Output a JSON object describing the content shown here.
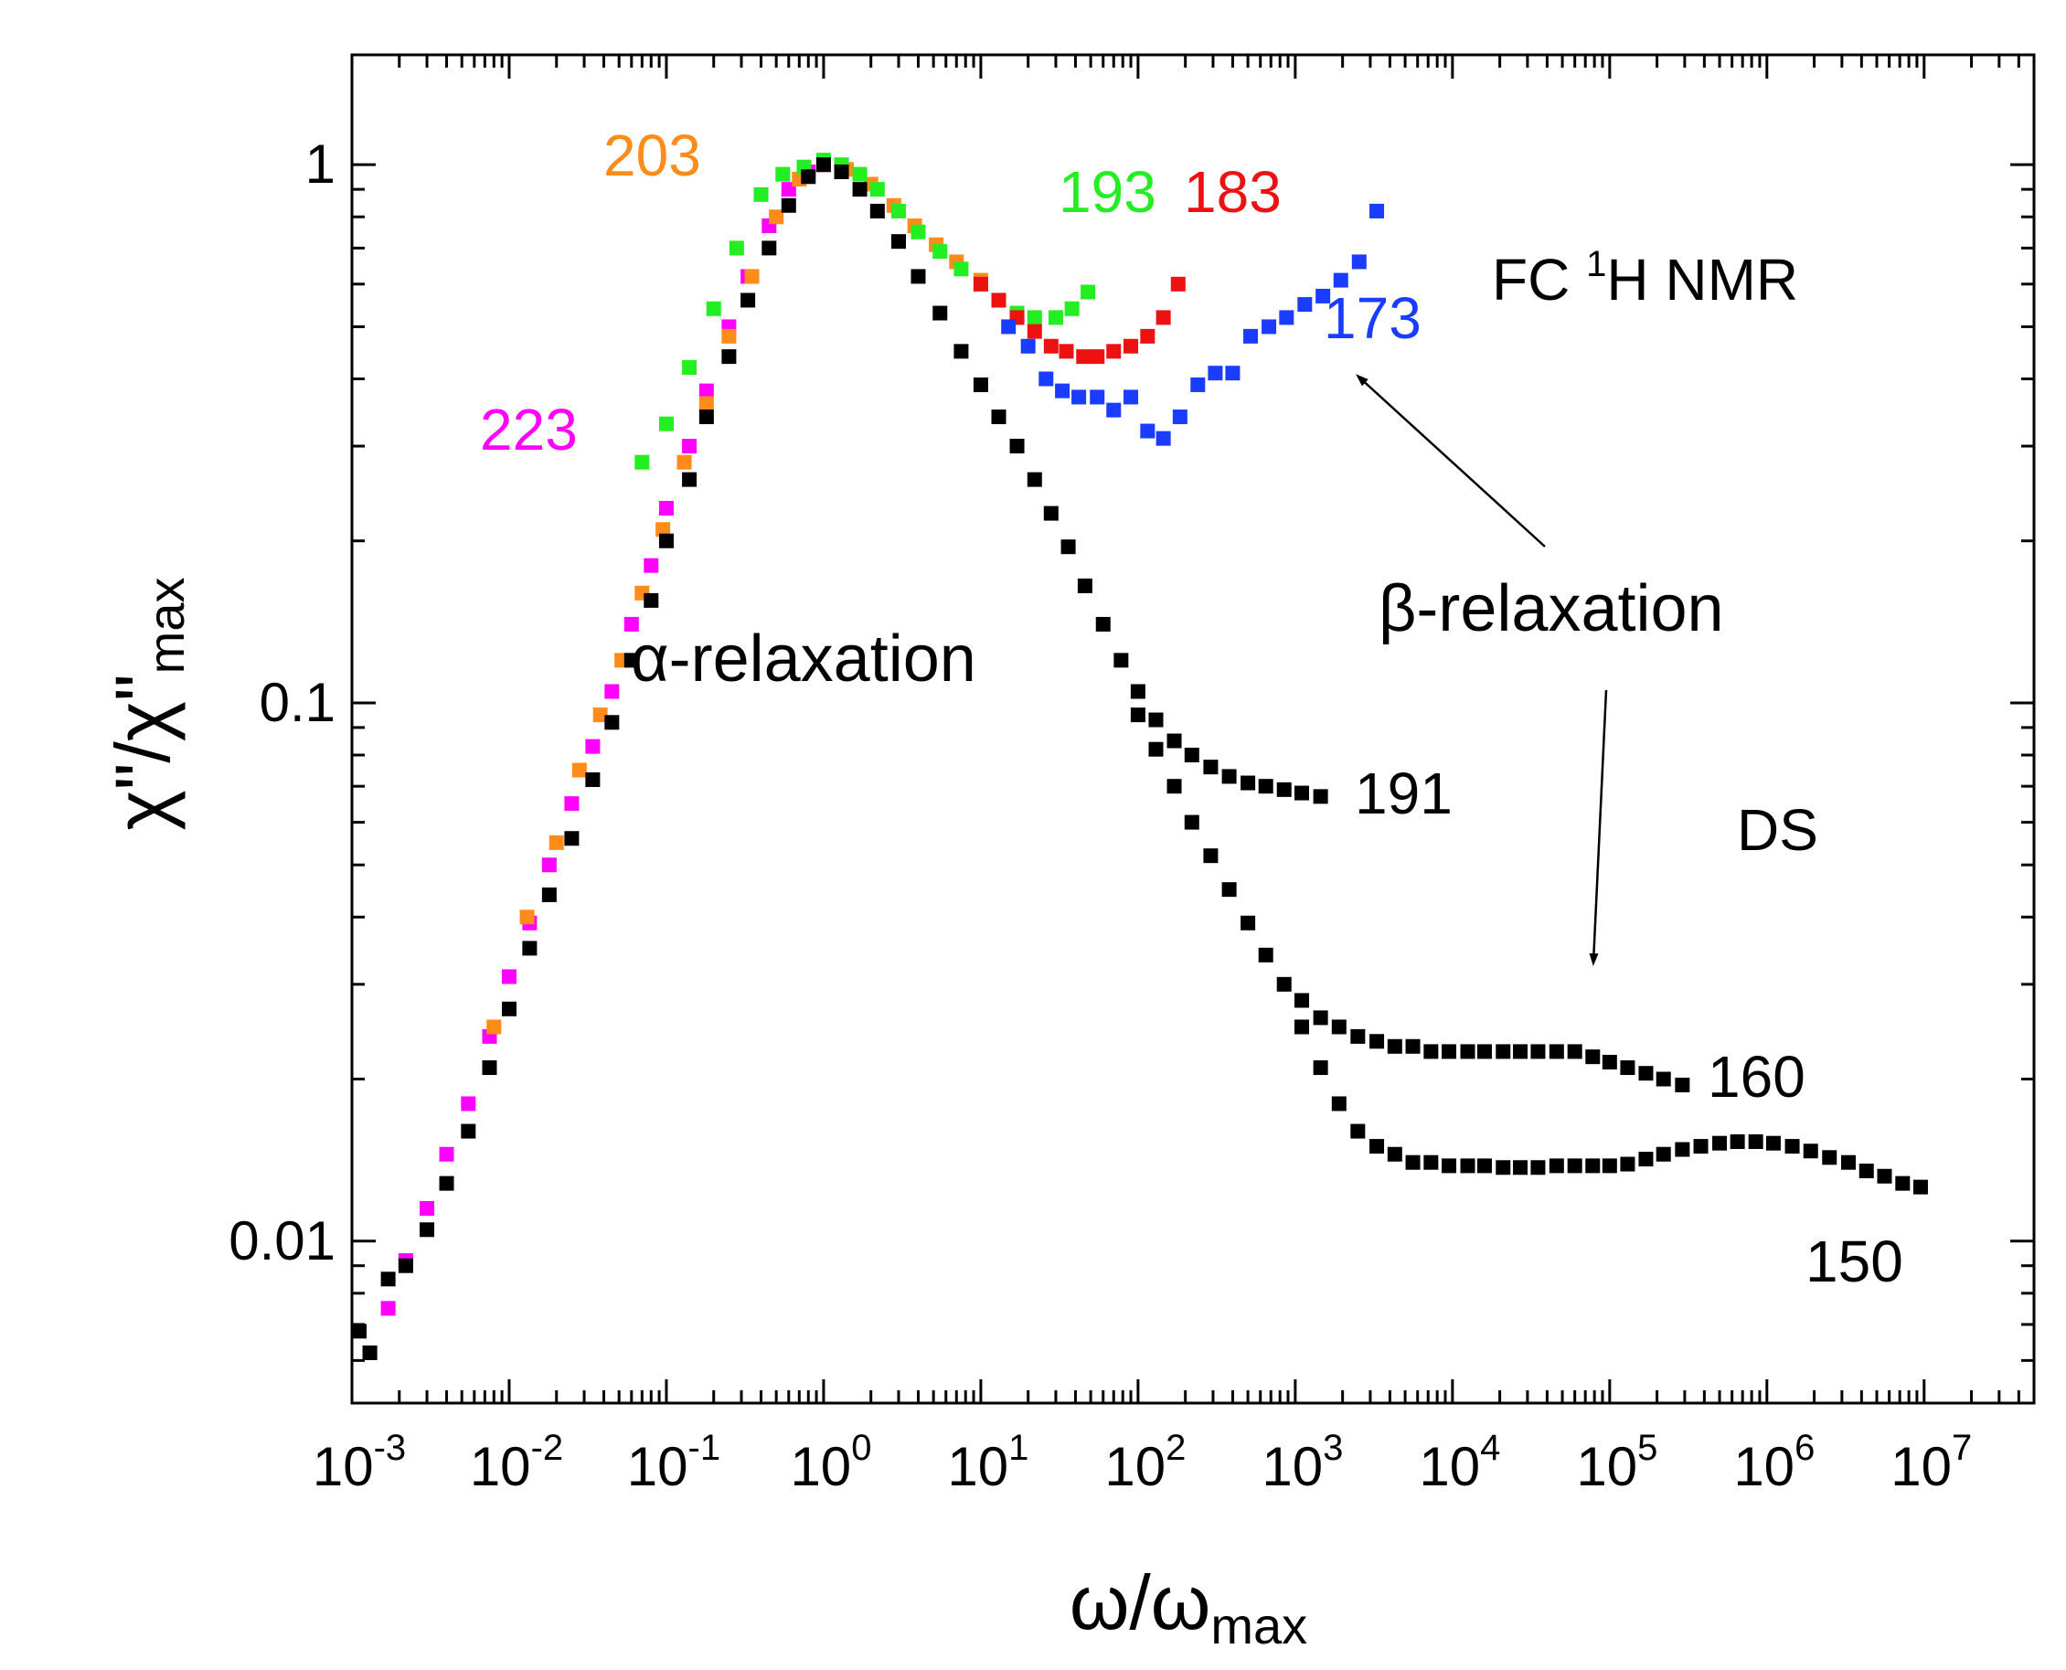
{
  "chart_data": {
    "type": "scatter",
    "xscale": "log",
    "yscale": "log",
    "xlim": [
      0.001,
      50000000
    ],
    "ylim": [
      0.005,
      1.6
    ],
    "xlabel": "ω/ω",
    "xlabel_sub": "max",
    "ylabel": "χ\"/χ\"",
    "ylabel_sub": "max",
    "xticks": [
      {
        "base": "10",
        "exp": "-3",
        "value": 0.001
      },
      {
        "base": "10",
        "exp": "-2",
        "value": 0.01
      },
      {
        "base": "10",
        "exp": "-1",
        "value": 0.1
      },
      {
        "base": "10",
        "exp": "0",
        "value": 1
      },
      {
        "base": "10",
        "exp": "1",
        "value": 10
      },
      {
        "base": "10",
        "exp": "2",
        "value": 100
      },
      {
        "base": "10",
        "exp": "3",
        "value": 1000
      },
      {
        "base": "10",
        "exp": "4",
        "value": 10000
      },
      {
        "base": "10",
        "exp": "5",
        "value": 100000
      },
      {
        "base": "10",
        "exp": "6",
        "value": 1000000
      },
      {
        "base": "10",
        "exp": "7",
        "value": 10000000
      }
    ],
    "yticks": [
      {
        "label": "0.01",
        "value": 0.01
      },
      {
        "label": "0.1",
        "value": 0.1
      },
      {
        "label": "1",
        "value": 1
      }
    ],
    "series": [
      {
        "name": "223",
        "color": "#ff00ff",
        "points": [
          [
            0.0013,
            0.0062
          ],
          [
            0.0017,
            0.0075
          ],
          [
            0.0022,
            0.0092
          ],
          [
            0.003,
            0.0115
          ],
          [
            0.004,
            0.0145
          ],
          [
            0.0055,
            0.018
          ],
          [
            0.0075,
            0.024
          ],
          [
            0.01,
            0.031
          ],
          [
            0.0135,
            0.039
          ],
          [
            0.018,
            0.05
          ],
          [
            0.025,
            0.065
          ],
          [
            0.034,
            0.083
          ],
          [
            0.045,
            0.105
          ],
          [
            0.06,
            0.14
          ],
          [
            0.08,
            0.18
          ],
          [
            0.1,
            0.23
          ],
          [
            0.14,
            0.3
          ],
          [
            0.18,
            0.38
          ],
          [
            0.25,
            0.5
          ],
          [
            0.33,
            0.62
          ],
          [
            0.45,
            0.77
          ],
          [
            0.6,
            0.9
          ],
          [
            0.8,
            0.97
          ],
          [
            1.0,
            1.0
          ]
        ]
      },
      {
        "name": "203",
        "color": "#ff8c1a",
        "points": [
          [
            0.008,
            0.025
          ],
          [
            0.013,
            0.04
          ],
          [
            0.02,
            0.055
          ],
          [
            0.028,
            0.075
          ],
          [
            0.038,
            0.095
          ],
          [
            0.052,
            0.12
          ],
          [
            0.07,
            0.16
          ],
          [
            0.095,
            0.21
          ],
          [
            0.13,
            0.28
          ],
          [
            0.18,
            0.36
          ],
          [
            0.25,
            0.48
          ],
          [
            0.35,
            0.62
          ],
          [
            0.5,
            0.8
          ],
          [
            0.7,
            0.94
          ],
          [
            1.0,
            1.0
          ],
          [
            1.4,
            0.98
          ],
          [
            2.0,
            0.92
          ],
          [
            2.8,
            0.84
          ],
          [
            3.8,
            0.77
          ],
          [
            5.2,
            0.71
          ],
          [
            7.0,
            0.66
          ],
          [
            10.0,
            0.61
          ]
        ]
      },
      {
        "name": "193",
        "color": "#22ee22",
        "points": [
          [
            0.07,
            0.28
          ],
          [
            0.1,
            0.33
          ],
          [
            0.14,
            0.42
          ],
          [
            0.2,
            0.54
          ],
          [
            0.28,
            0.7
          ],
          [
            0.4,
            0.88
          ],
          [
            0.55,
            0.96
          ],
          [
            0.75,
            0.99
          ],
          [
            1.0,
            1.02
          ],
          [
            1.3,
            1.0
          ],
          [
            1.7,
            0.96
          ],
          [
            2.2,
            0.9
          ],
          [
            3.0,
            0.82
          ],
          [
            4.0,
            0.75
          ],
          [
            5.5,
            0.69
          ],
          [
            7.5,
            0.64
          ],
          [
            10,
            0.6
          ],
          [
            13,
            0.56
          ],
          [
            17,
            0.53
          ],
          [
            22,
            0.52
          ],
          [
            30,
            0.52
          ],
          [
            38,
            0.54
          ],
          [
            48,
            0.58
          ]
        ]
      },
      {
        "name": "183",
        "color": "#ee1111",
        "points": [
          [
            10,
            0.6
          ],
          [
            13,
            0.56
          ],
          [
            17,
            0.52
          ],
          [
            22,
            0.49
          ],
          [
            28,
            0.46
          ],
          [
            35,
            0.45
          ],
          [
            45,
            0.44
          ],
          [
            55,
            0.44
          ],
          [
            70,
            0.45
          ],
          [
            90,
            0.46
          ],
          [
            115,
            0.48
          ],
          [
            145,
            0.52
          ],
          [
            180,
            0.6
          ]
        ]
      },
      {
        "name": "173",
        "color": "#1a3cff",
        "points": [
          [
            15,
            0.5
          ],
          [
            20,
            0.46
          ],
          [
            26,
            0.4
          ],
          [
            33,
            0.38
          ],
          [
            42,
            0.37
          ],
          [
            55,
            0.37
          ],
          [
            70,
            0.35
          ],
          [
            90,
            0.37
          ],
          [
            115,
            0.32
          ],
          [
            145,
            0.31
          ],
          [
            185,
            0.34
          ],
          [
            240,
            0.39
          ],
          [
            310,
            0.41
          ],
          [
            400,
            0.41
          ],
          [
            520,
            0.48
          ],
          [
            680,
            0.5
          ],
          [
            880,
            0.52
          ],
          [
            1150,
            0.55
          ],
          [
            1500,
            0.57
          ],
          [
            1950,
            0.61
          ],
          [
            2550,
            0.66
          ],
          [
            3300,
            0.82
          ]
        ]
      },
      {
        "name": "191",
        "color": "#000000",
        "points": [
          [
            0.001,
            0.0068
          ],
          [
            0.0013,
            0.0062
          ],
          [
            0.0017,
            0.0085
          ],
          [
            0.0022,
            0.009
          ],
          [
            0.003,
            0.0105
          ],
          [
            0.004,
            0.0128
          ],
          [
            0.0055,
            0.016
          ],
          [
            0.0075,
            0.021
          ],
          [
            0.01,
            0.027
          ],
          [
            0.0135,
            0.035
          ],
          [
            0.018,
            0.044
          ],
          [
            0.025,
            0.056
          ],
          [
            0.034,
            0.072
          ],
          [
            0.045,
            0.092
          ],
          [
            0.06,
            0.12
          ],
          [
            0.08,
            0.155
          ],
          [
            0.1,
            0.2
          ],
          [
            0.14,
            0.26
          ],
          [
            0.18,
            0.34
          ],
          [
            0.25,
            0.44
          ],
          [
            0.33,
            0.56
          ],
          [
            0.45,
            0.7
          ],
          [
            0.6,
            0.84
          ],
          [
            0.8,
            0.95
          ],
          [
            1.0,
            1.0
          ],
          [
            1.3,
            0.97
          ],
          [
            1.7,
            0.9
          ],
          [
            2.2,
            0.82
          ],
          [
            3.0,
            0.72
          ],
          [
            4.0,
            0.62
          ],
          [
            5.5,
            0.53
          ],
          [
            7.5,
            0.45
          ],
          [
            10,
            0.39
          ],
          [
            13,
            0.34
          ],
          [
            17,
            0.3
          ],
          [
            22,
            0.26
          ],
          [
            28,
            0.225
          ],
          [
            36,
            0.195
          ],
          [
            46,
            0.165
          ],
          [
            60,
            0.14
          ],
          [
            78,
            0.12
          ],
          [
            100,
            0.105
          ],
          [
            130,
            0.093
          ],
          [
            170,
            0.085
          ],
          [
            220,
            0.08
          ],
          [
            290,
            0.076
          ],
          [
            380,
            0.073
          ],
          [
            500,
            0.071
          ],
          [
            650,
            0.07
          ],
          [
            850,
            0.069
          ],
          [
            1100,
            0.068
          ],
          [
            1450,
            0.067
          ]
        ]
      },
      {
        "name": "160",
        "color": "#000000",
        "points": [
          [
            100,
            0.095
          ],
          [
            130,
            0.082
          ],
          [
            170,
            0.07
          ],
          [
            220,
            0.06
          ],
          [
            290,
            0.052
          ],
          [
            380,
            0.045
          ],
          [
            500,
            0.039
          ],
          [
            650,
            0.034
          ],
          [
            850,
            0.03
          ],
          [
            1100,
            0.028
          ],
          [
            1450,
            0.026
          ],
          [
            1900,
            0.025
          ],
          [
            2500,
            0.024
          ],
          [
            3300,
            0.0235
          ],
          [
            4300,
            0.023
          ],
          [
            5600,
            0.023
          ],
          [
            7300,
            0.0225
          ],
          [
            9500,
            0.0225
          ],
          [
            12500,
            0.0225
          ],
          [
            16000,
            0.0225
          ],
          [
            21000,
            0.0225
          ],
          [
            27000,
            0.0225
          ],
          [
            35000,
            0.0225
          ],
          [
            46000,
            0.0225
          ],
          [
            60000,
            0.0225
          ],
          [
            78000,
            0.022
          ],
          [
            100000,
            0.0215
          ],
          [
            130000,
            0.021
          ],
          [
            170000,
            0.0205
          ],
          [
            220000,
            0.02
          ],
          [
            290000,
            0.0195
          ]
        ]
      },
      {
        "name": "150",
        "color": "#000000",
        "points": [
          [
            1100,
            0.025
          ],
          [
            1450,
            0.021
          ],
          [
            1900,
            0.018
          ],
          [
            2500,
            0.016
          ],
          [
            3300,
            0.015
          ],
          [
            4300,
            0.0145
          ],
          [
            5600,
            0.014
          ],
          [
            7300,
            0.014
          ],
          [
            9500,
            0.0138
          ],
          [
            12500,
            0.0138
          ],
          [
            16000,
            0.0138
          ],
          [
            21000,
            0.0137
          ],
          [
            27000,
            0.0137
          ],
          [
            35000,
            0.0137
          ],
          [
            46000,
            0.0138
          ],
          [
            60000,
            0.0138
          ],
          [
            78000,
            0.0138
          ],
          [
            100000,
            0.0138
          ],
          [
            130000,
            0.0139
          ],
          [
            170000,
            0.0142
          ],
          [
            220000,
            0.0145
          ],
          [
            290000,
            0.0148
          ],
          [
            380000,
            0.015
          ],
          [
            500000,
            0.0152
          ],
          [
            650000,
            0.0153
          ],
          [
            850000,
            0.0153
          ],
          [
            1100000,
            0.0152
          ],
          [
            1450000,
            0.015
          ],
          [
            1900000,
            0.0147
          ],
          [
            2500000,
            0.0143
          ],
          [
            3300000,
            0.014
          ],
          [
            4300000,
            0.0135
          ],
          [
            5600000,
            0.0132
          ],
          [
            7300000,
            0.0128
          ],
          [
            9500000,
            0.0126
          ]
        ]
      }
    ],
    "annotations": [
      {
        "key": "a223",
        "text": "223",
        "color": "#ff00ff"
      },
      {
        "key": "a203",
        "text": "203",
        "color": "#ff8c1a"
      },
      {
        "key": "a193",
        "text": "193",
        "color": "#22ee22"
      },
      {
        "key": "a183",
        "text": "183",
        "color": "#ee1111"
      },
      {
        "key": "a173",
        "text": "173",
        "color": "#1a3cff"
      },
      {
        "key": "a191",
        "text": "191",
        "color": "#000000"
      },
      {
        "key": "a160",
        "text": "160",
        "color": "#000000"
      },
      {
        "key": "a150",
        "text": "150",
        "color": "#000000"
      }
    ],
    "text_labels": {
      "alpha": "α-relaxation",
      "beta": "β-relaxation",
      "ds": "DS",
      "fc_prefix": "FC ",
      "fc_sup": "1",
      "fc_suffix": "H NMR"
    }
  }
}
